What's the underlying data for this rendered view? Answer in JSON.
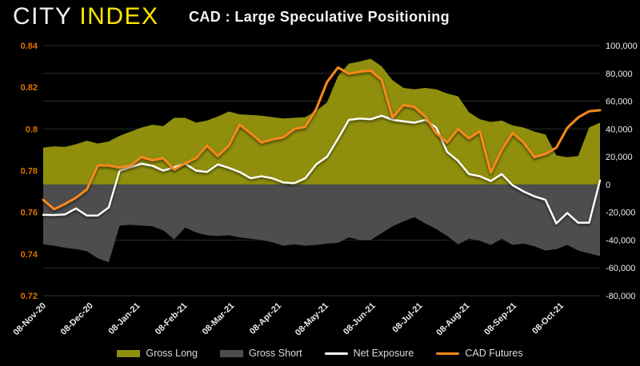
{
  "header": {
    "logo_city": "CITY",
    "logo_index": "INDEX",
    "logo_city_color": "#f2f2f2",
    "logo_index_color": "#ffe600",
    "title": "CAD : Large Speculative Positioning"
  },
  "legend": [
    {
      "label": "Gross Long",
      "color": "#8f8f10",
      "swatch": "area"
    },
    {
      "label": "Gross Short",
      "color": "#4d4d4d",
      "swatch": "area"
    },
    {
      "label": "Net Exposure",
      "color": "#ffffff",
      "swatch": "line"
    },
    {
      "label": "CAD Futures",
      "color": "#f6881f",
      "swatch": "line"
    }
  ],
  "chart_data": {
    "type": "combo",
    "title": "CAD : Large Speculative Positioning",
    "grid": "horizontal",
    "background": "#000000",
    "gridline_color": "#2e2e2e",
    "x_tick_labels": [
      "08-Nov-20",
      "08-Dec-20",
      "08-Jan-21",
      "08-Feb-21",
      "08-Mar-21",
      "08-Apr-21",
      "08-May-21",
      "08-Jun-21",
      "08-Jul-21",
      "08-Aug-21",
      "08-Sep-21",
      "08-Oct-21"
    ],
    "left_axis": {
      "min": 0.72,
      "max": 0.84,
      "tick_values": [
        0.84,
        0.82,
        0.8,
        0.78,
        0.76,
        0.74,
        0.72
      ],
      "tick_labels": [
        "0.84",
        "0.82",
        "0.8",
        "0.78",
        "0.76",
        "0.74",
        "0.72"
      ],
      "label_color": "#e07200"
    },
    "right_axis": {
      "min": -80000,
      "max": 100000,
      "tick_values": [
        100000,
        80000,
        60000,
        40000,
        20000,
        0,
        -20000,
        -40000,
        -60000,
        -80000
      ],
      "tick_labels": [
        "100,000",
        "80,000",
        "60,000",
        "40,000",
        "20,000",
        "0",
        "-20,000",
        "-40,000",
        "-60,000",
        "-80,000"
      ],
      "label_color": "#f0f0f0"
    },
    "x_label_color": "#eaeaea",
    "series": [
      {
        "name": "Gross Long",
        "type": "area",
        "axis": "right",
        "color": "#8f8f10",
        "values": [
          26500,
          27500,
          27000,
          29000,
          31500,
          29500,
          31000,
          35000,
          38000,
          41000,
          43000,
          42000,
          48000,
          48000,
          44500,
          46000,
          49000,
          52500,
          50500,
          50000,
          49500,
          48500,
          47500,
          48000,
          48500,
          53000,
          59000,
          78000,
          87000,
          88500,
          90500,
          85000,
          75000,
          69500,
          68500,
          69500,
          68500,
          65500,
          63500,
          52000,
          47000,
          45000,
          46000,
          42500,
          41000,
          38000,
          36000,
          21000,
          19500,
          20500,
          41000,
          44500
        ]
      },
      {
        "name": "Gross Short",
        "type": "area",
        "axis": "right",
        "color": "#4d4d4d",
        "values": [
          -43000,
          -44000,
          -45500,
          -46500,
          -48000,
          -53000,
          -56000,
          -29500,
          -29000,
          -29500,
          -30000,
          -33000,
          -39500,
          -31000,
          -34500,
          -36500,
          -37000,
          -36500,
          -38000,
          -39000,
          -40000,
          -41500,
          -44000,
          -43000,
          -44000,
          -43500,
          -42500,
          -42000,
          -38000,
          -40000,
          -40000,
          -35000,
          -30000,
          -26500,
          -23500,
          -28000,
          -32000,
          -37000,
          -43000,
          -39000,
          -40500,
          -43500,
          -39000,
          -43500,
          -42500,
          -44500,
          -47500,
          -46500,
          -43500,
          -47500,
          -49500,
          -51500
        ]
      },
      {
        "name": "Net Exposure",
        "type": "line",
        "axis": "right",
        "color": "#ffffff",
        "values": [
          -21800,
          -22000,
          -21500,
          -17200,
          -22300,
          -22300,
          -16500,
          10000,
          12500,
          15000,
          13500,
          10000,
          12500,
          15000,
          10000,
          9000,
          14500,
          12000,
          9000,
          4500,
          6000,
          4500,
          1500,
          1000,
          4500,
          14500,
          20000,
          33000,
          46500,
          47500,
          47000,
          49500,
          46500,
          45500,
          44500,
          46500,
          41000,
          23500,
          17000,
          7500,
          6000,
          2500,
          7500,
          -500,
          -5000,
          -8500,
          -11000,
          -28000,
          -20500,
          -27500,
          -27500,
          3000
        ]
      },
      {
        "name": "CAD Futures",
        "type": "line",
        "axis": "left",
        "color": "#f6881f",
        "values": [
          0.766,
          0.7615,
          0.764,
          0.767,
          0.771,
          0.7825,
          0.7825,
          0.7815,
          0.7825,
          0.7865,
          0.785,
          0.786,
          0.7805,
          0.7835,
          0.786,
          0.792,
          0.787,
          0.792,
          0.802,
          0.798,
          0.7935,
          0.795,
          0.796,
          0.8,
          0.801,
          0.8095,
          0.8225,
          0.8295,
          0.8265,
          0.8275,
          0.828,
          0.8235,
          0.8055,
          0.8115,
          0.8105,
          0.806,
          0.798,
          0.7935,
          0.8,
          0.7955,
          0.799,
          0.779,
          0.79,
          0.798,
          0.7935,
          0.7865,
          0.788,
          0.791,
          0.8005,
          0.8055,
          0.8085,
          0.809
        ]
      }
    ]
  }
}
